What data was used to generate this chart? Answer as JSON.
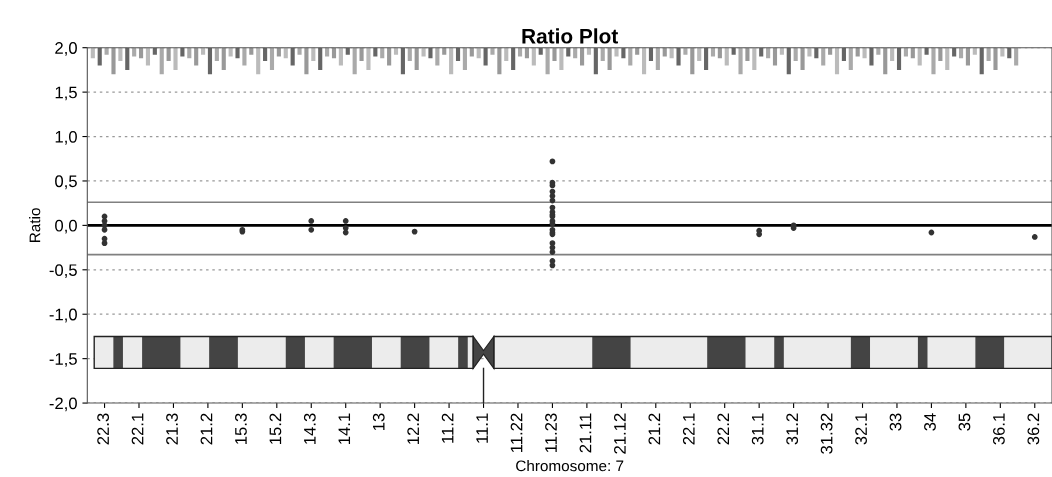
{
  "chart_data": {
    "type": "scatter",
    "title": "Ratio Plot",
    "xlabel": "Chromosome: 7",
    "ylabel": "Ratio",
    "categories": [
      "22.3",
      "22.1",
      "21.3",
      "21.2",
      "15.3",
      "15.2",
      "14.3",
      "14.1",
      "13",
      "12.2",
      "11.2",
      "11.1",
      "11.22",
      "11.23",
      "21.11",
      "21.12",
      "21.2",
      "22.1",
      "22.2",
      "31.1",
      "31.2",
      "31.32",
      "32.1",
      "33",
      "34",
      "35",
      "36.1",
      "36.2"
    ],
    "series": [
      {
        "color": "#333333",
        "x": [
          "22.3",
          "22.3",
          "22.3",
          "22.3",
          "22.3",
          "22.3",
          "15.3",
          "15.3",
          "14.3",
          "14.3",
          "14.1",
          "14.1",
          "14.1",
          "12.2",
          "11.23",
          "11.23",
          "11.23",
          "11.23",
          "11.23",
          "11.23",
          "11.23",
          "11.23",
          "11.23",
          "11.23",
          "11.23",
          "11.23",
          "11.23",
          "11.23",
          "11.23",
          "11.23",
          "11.23",
          "11.23",
          "11.23",
          "11.23",
          "31.1",
          "31.1",
          "31.2",
          "31.2",
          "34",
          "36.2"
        ],
        "values": [
          0.1,
          0.0,
          -0.05,
          -0.15,
          -0.2,
          0.05,
          -0.05,
          -0.07,
          0.05,
          -0.05,
          0.05,
          -0.03,
          -0.08,
          -0.07,
          0.72,
          0.48,
          0.45,
          0.38,
          0.33,
          0.28,
          0.2,
          0.15,
          0.1,
          0.05,
          -0.05,
          -0.1,
          -0.2,
          -0.25,
          -0.3,
          -0.4,
          -0.45,
          0.12,
          -0.08,
          0.02,
          -0.06,
          -0.1,
          0.0,
          -0.03,
          -0.08,
          -0.13
        ]
      }
    ],
    "ylim": [
      -2,
      2
    ],
    "yticks": [
      {
        "value": -2,
        "label": "-2,0"
      },
      {
        "value": -1.5,
        "label": "-1,5"
      },
      {
        "value": -1,
        "label": "-1,0"
      },
      {
        "value": -0.5,
        "label": "-0,5"
      },
      {
        "value": 0,
        "label": "0,0"
      },
      {
        "value": 0.5,
        "label": "0,5"
      },
      {
        "value": 1,
        "label": "1,0"
      },
      {
        "value": 1.5,
        "label": "1,5"
      },
      {
        "value": 2,
        "label": "2,0"
      }
    ],
    "ref_lines": [
      {
        "axis": "y",
        "value": 0,
        "color": "#000000"
      },
      {
        "axis": "y",
        "value": 0.26,
        "color": "#808080"
      },
      {
        "axis": "y",
        "value": -0.33,
        "color": "#808080"
      }
    ],
    "grid": "y",
    "marker": "circle"
  }
}
